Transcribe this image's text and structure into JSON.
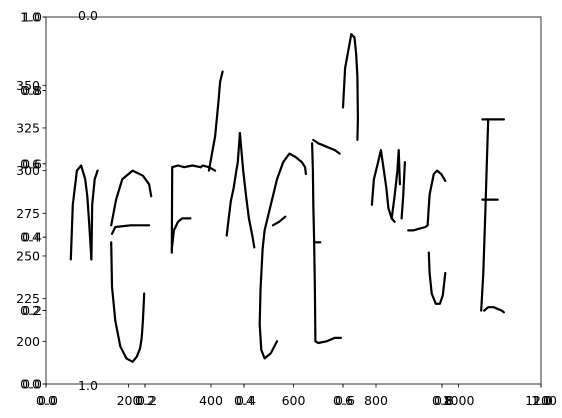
{
  "chart_data": {
    "type": "line",
    "axes": [
      {
        "role": "base",
        "x_ticks": [
          "0.0",
          "0.2",
          "0.4",
          "0.6",
          "0.8",
          "1.0"
        ],
        "y_ticks": [
          "0.0",
          "0.2",
          "0.4",
          "0.6",
          "0.8",
          "1.0"
        ],
        "xlim": [
          0,
          1
        ],
        "ylim": [
          0,
          1
        ]
      },
      {
        "role": "handwriting",
        "x_ticks": [
          "200",
          "400",
          "600",
          "800",
          "1000",
          "1200"
        ],
        "y_ticks": [
          "200",
          "225",
          "250",
          "275",
          "300",
          "325",
          "350"
        ],
        "xlim": [
          0,
          1200
        ],
        "ylim": [
          175,
          390
        ],
        "strokes": [
          [
            [
              60,
              248
            ],
            [
              65,
              280
            ],
            [
              75,
              300
            ],
            [
              85,
              303
            ],
            [
              95,
              295
            ],
            [
              100,
              285
            ],
            [
              105,
              268
            ],
            [
              110,
              248
            ]
          ],
          [
            [
              110,
              248
            ],
            [
              112,
              280
            ],
            [
              118,
              295
            ],
            [
              125,
              300
            ]
          ],
          [
            [
              158,
              258
            ],
            [
              160,
              232
            ],
            [
              168,
              212
            ],
            [
              180,
              197
            ],
            [
              195,
              190
            ],
            [
              210,
              188
            ],
            [
              220,
              191
            ],
            [
              228,
              196
            ],
            [
              232,
              202
            ],
            [
              235,
              212
            ],
            [
              238,
              228
            ]
          ],
          [
            [
              160,
              263
            ],
            [
              168,
              267
            ],
            [
              205,
              268
            ],
            [
              250,
              268
            ]
          ],
          [
            [
              158,
              268
            ],
            [
              170,
              283
            ],
            [
              185,
              295
            ],
            [
              210,
              300
            ],
            [
              235,
              297
            ],
            [
              250,
              292
            ],
            [
              255,
              285
            ]
          ],
          [
            [
              305,
              254
            ],
            [
              310,
              265
            ],
            [
              320,
              270
            ],
            [
              330,
              272
            ],
            [
              350,
              272
            ]
          ],
          [
            [
              305,
              252
            ],
            [
              306,
              302
            ],
            [
              320,
              303
            ],
            [
              335,
              302
            ],
            [
              355,
              303
            ],
            [
              375,
              302
            ]
          ],
          [
            [
              375,
              302
            ],
            [
              380,
              303
            ],
            [
              395,
              302
            ],
            [
              410,
              300
            ]
          ],
          [
            [
              395,
              300
            ],
            [
              410,
              320
            ],
            [
              418,
              340
            ],
            [
              422,
              352
            ],
            [
              428,
              358
            ]
          ],
          [
            [
              438,
              262
            ],
            [
              442,
              270
            ],
            [
              448,
              282
            ],
            [
              455,
              290
            ],
            [
              460,
              298
            ],
            [
              465,
              305
            ],
            [
              470,
              322
            ]
          ],
          [
            [
              470,
              322
            ],
            [
              478,
              300
            ],
            [
              485,
              285
            ],
            [
              492,
              272
            ],
            [
              500,
              262
            ],
            [
              505,
              255
            ]
          ],
          [
            [
              525,
              254
            ],
            [
              520,
              230
            ],
            [
              518,
              210
            ],
            [
              522,
              195
            ],
            [
              530,
              190
            ],
            [
              545,
              193
            ],
            [
              560,
              200
            ]
          ],
          [
            [
              525,
              254
            ],
            [
              530,
              265
            ],
            [
              545,
              280
            ],
            [
              560,
              295
            ],
            [
              575,
              305
            ],
            [
              590,
              310
            ],
            [
              605,
              308
            ],
            [
              620,
              305
            ],
            [
              628,
              302
            ],
            [
              630,
              298
            ]
          ],
          [
            [
              550,
              268
            ],
            [
              565,
              270
            ],
            [
              580,
              273
            ]
          ],
          [
            [
              645,
              316
            ],
            [
              647,
              300
            ],
            [
              648,
              280
            ],
            [
              650,
              260
            ],
            [
              652,
              230
            ],
            [
              653,
              200
            ]
          ],
          [
            [
              653,
              200
            ],
            [
              660,
              199
            ],
            [
              680,
              200
            ],
            [
              700,
              202
            ],
            [
              715,
              202
            ]
          ],
          [
            [
              650,
              258
            ],
            [
              665,
              258
            ]
          ],
          [
            [
              648,
              318
            ],
            [
              660,
              316
            ],
            [
              680,
              314
            ],
            [
              700,
              312
            ],
            [
              712,
              310
            ]
          ],
          [
            [
              720,
              337
            ],
            [
              725,
              360
            ],
            [
              740,
              380
            ],
            [
              748,
              378
            ],
            [
              752,
              368
            ],
            [
              755,
              355
            ],
            [
              756,
              330
            ],
            [
              755,
              318
            ]
          ],
          [
            [
              790,
              280
            ],
            [
              795,
              295
            ],
            [
              805,
              305
            ],
            [
              812,
              312
            ],
            [
              818,
              302
            ],
            [
              825,
              290
            ],
            [
              830,
              278
            ],
            [
              838,
              272
            ],
            [
              845,
              270
            ]
          ],
          [
            [
              838,
              272
            ],
            [
              845,
              285
            ],
            [
              852,
              300
            ],
            [
              855,
              312
            ],
            [
              858,
              292
            ]
          ],
          [
            [
              862,
              272
            ],
            [
              866,
              285
            ],
            [
              870,
              305
            ]
          ],
          [
            [
              878,
              265
            ],
            [
              890,
              265
            ],
            [
              905,
              266
            ],
            [
              920,
              267
            ],
            [
              925,
              268
            ]
          ],
          [
            [
              925,
              268
            ],
            [
              930,
              286
            ],
            [
              940,
              298
            ],
            [
              948,
              300
            ],
            [
              958,
              298
            ],
            [
              968,
              294
            ]
          ],
          [
            [
              928,
              252
            ],
            [
              930,
              240
            ],
            [
              935,
              228
            ],
            [
              945,
              222
            ],
            [
              955,
              222
            ],
            [
              962,
              227
            ],
            [
              968,
              240
            ]
          ],
          [
            [
              1055,
              218
            ],
            [
              1060,
              240
            ],
            [
              1065,
              275
            ],
            [
              1068,
              300
            ],
            [
              1072,
              330
            ]
          ],
          [
            [
              1058,
              330
            ],
            [
              1065,
              330
            ],
            [
              1080,
              330
            ],
            [
              1100,
              330
            ],
            [
              1110,
              330
            ]
          ],
          [
            [
              1058,
              283
            ],
            [
              1070,
              283
            ],
            [
              1085,
              283
            ],
            [
              1095,
              283
            ]
          ],
          [
            [
              1062,
              218
            ],
            [
              1072,
              220
            ],
            [
              1085,
              220
            ],
            [
              1095,
              219
            ],
            [
              1105,
              218
            ],
            [
              1110,
              217
            ]
          ]
        ]
      },
      {
        "role": "overlay",
        "x_ticks": [
          "0.0",
          "0.2",
          "0.4",
          "0.6",
          "0.8",
          "1.0"
        ],
        "y_ticks": [
          "0.0",
          "0.2",
          "0.4",
          "0.6",
          "0.8",
          "1.0"
        ],
        "xlim": [
          0,
          1
        ],
        "ylim": [
          0,
          1
        ]
      }
    ]
  }
}
